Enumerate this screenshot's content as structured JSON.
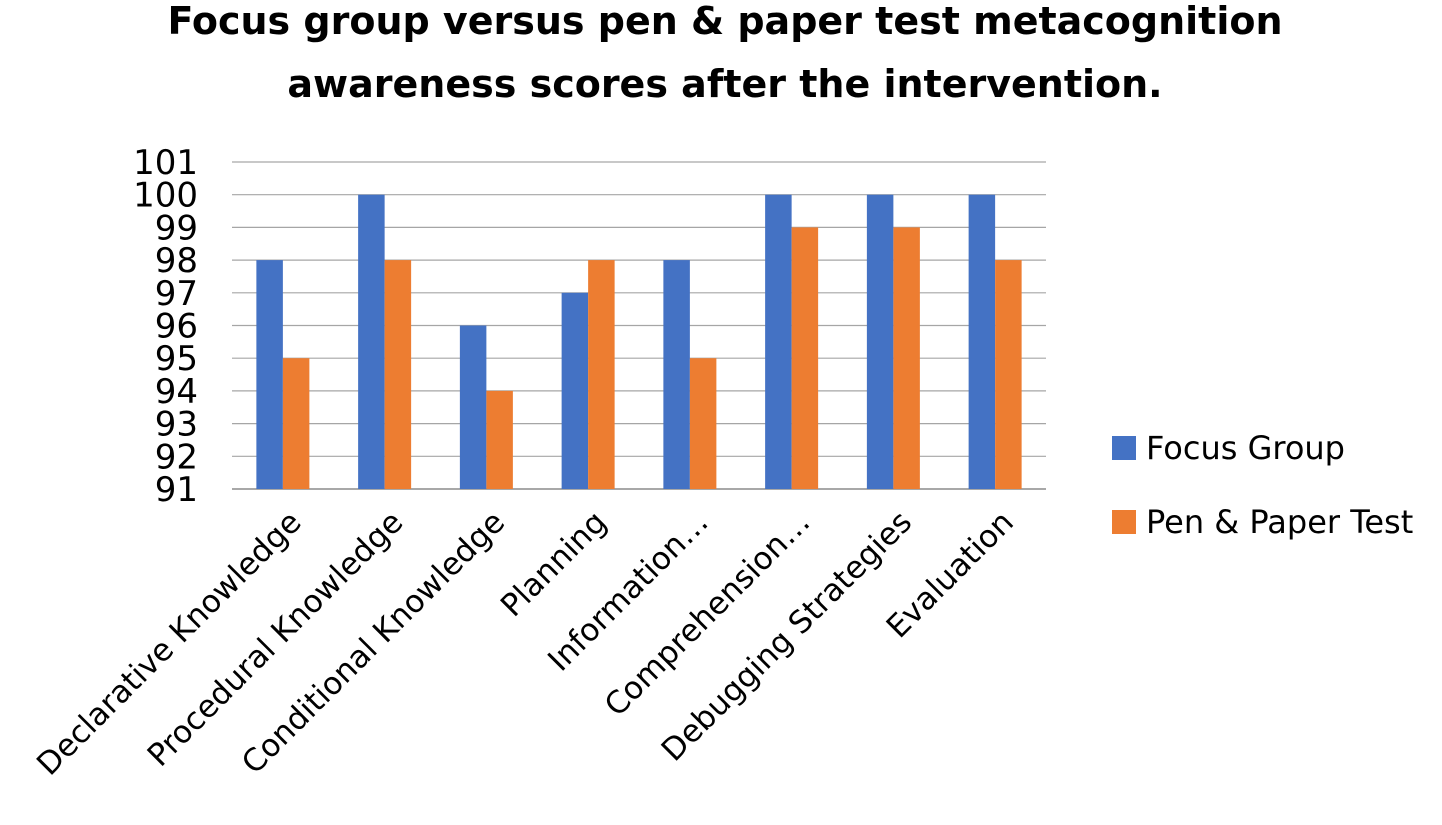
{
  "chart_data": {
    "type": "bar",
    "title": "Focus group versus pen & paper test metacognition awareness scores after the intervention.",
    "title_lines": [
      "Focus group versus pen & paper test metacognition",
      "awareness scores after the intervention."
    ],
    "categories": [
      "Declarative Knowledge",
      "Procedural Knowledge",
      "Conditional Knowledge",
      "Planning",
      "Information…",
      "Comprehension…",
      "Debugging Strategies",
      "Evaluation"
    ],
    "series": [
      {
        "name": "Focus Group",
        "color": "#4472C4",
        "values": [
          98,
          100,
          96,
          97,
          98,
          100,
          100,
          100
        ]
      },
      {
        "name": "Pen & Paper Test",
        "color": "#ED7D31",
        "values": [
          95,
          98,
          94,
          98,
          95,
          99,
          99,
          98
        ]
      }
    ],
    "xlabel": "",
    "ylabel": "",
    "ylim": [
      91,
      101
    ],
    "yticks": [
      91,
      92,
      93,
      94,
      95,
      96,
      97,
      98,
      99,
      100,
      101
    ],
    "grid": true,
    "legend": "right"
  }
}
